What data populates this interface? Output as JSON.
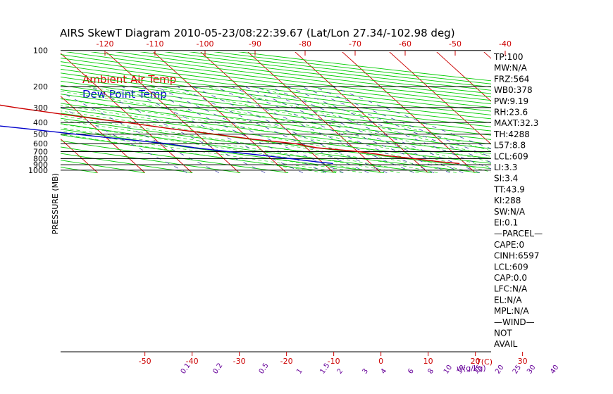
{
  "chart_data": {
    "type": "line",
    "title": "AIRS SkewT Diagram 2010-05-23/08:22:39.67 (Lat/Lon 27.34/-102.98 deg)",
    "ylabel": "PRESSURE (MB)",
    "x_unit_label": "T(C)",
    "mixing_unit_label": "w(g/kg)",
    "pressure_ticks": [
      100,
      200,
      300,
      400,
      500,
      600,
      700,
      800,
      900,
      1000
    ],
    "pressure_range": [
      100,
      1050
    ],
    "bottom_temp_ticks": [
      -50,
      -40,
      -30,
      -20,
      -10,
      0,
      10,
      20,
      30
    ],
    "top_temp_ticks": [
      -120,
      -110,
      -100,
      -90,
      -80,
      -70,
      -60,
      -50,
      -40
    ],
    "mixing_ratio_ticks": [
      "0.1",
      "0.2",
      "0.5",
      "1",
      "1.5",
      "2",
      "3",
      "4",
      "6",
      "8",
      "10",
      "12",
      "15",
      "20",
      "25",
      "30",
      "40"
    ],
    "legend": [
      {
        "name": "Ambient Air Temp",
        "color": "#e00000"
      },
      {
        "name": "Dew Point Temp",
        "color": "#0000cc"
      }
    ],
    "series": [
      {
        "name": "Ambient Air Temp",
        "color": "#cc0000",
        "points": [
          [
            100,
            -75.5
          ],
          [
            120,
            -78.9
          ],
          [
            150,
            -82.8
          ],
          [
            180,
            -82.7
          ],
          [
            200,
            -80.1
          ],
          [
            240,
            -74.1
          ],
          [
            270,
            -68.2
          ],
          [
            300,
            -62.2
          ],
          [
            340,
            -54.0
          ],
          [
            380,
            -46.3
          ],
          [
            400,
            -42.0
          ],
          [
            450,
            -34.3
          ],
          [
            500,
            -26.3
          ],
          [
            550,
            -19.5
          ],
          [
            600,
            -11.5
          ],
          [
            650,
            -7.8
          ],
          [
            700,
            0.3
          ],
          [
            760,
            5.6
          ],
          [
            800,
            10.3
          ],
          [
            850,
            15.0
          ],
          [
            880,
            18.8
          ]
        ]
      },
      {
        "name": "Dew Point Temp",
        "color": "#0000cc",
        "points": [
          [
            100,
            -87.6
          ],
          [
            120,
            -91.6
          ],
          [
            150,
            -96.7
          ],
          [
            180,
            -98.4
          ],
          [
            200,
            -96.0
          ],
          [
            230,
            -90.5
          ],
          [
            260,
            -91.1
          ],
          [
            300,
            -86.5
          ],
          [
            350,
            -80.8
          ],
          [
            400,
            -76.0
          ],
          [
            450,
            -64.9
          ],
          [
            500,
            -55.7
          ],
          [
            550,
            -46.9
          ],
          [
            600,
            -38.7
          ],
          [
            650,
            -33.7
          ],
          [
            700,
            -27.4
          ],
          [
            760,
            -20.2
          ],
          [
            800,
            -15.9
          ],
          [
            850,
            -11.1
          ],
          [
            880,
            -8.0
          ]
        ]
      }
    ],
    "grid": true
  },
  "stats": [
    "TP:100",
    "MW:N/A",
    "FRZ:564",
    "WB0:378",
    "PW:9.19",
    "RH:23.6",
    "MAXT:32.3",
    "TH:4288",
    "L57:8.8",
    "LCL:609",
    "LI:3.3",
    "SI:3.4",
    "TT:43.9",
    "KI:288",
    "SW:N/A",
    "EI:0.1",
    "—PARCEL—",
    "CAPE:0",
    "CINH:6597",
    "LCL:609",
    "CAP:0.0",
    "LFC:N/A",
    "EL:N/A",
    "MPL:N/A",
    "—WIND—",
    "NOT",
    "AVAIL"
  ],
  "colors": {
    "isotherm": "#cc0000",
    "dry_adiabat": "#00cc00",
    "moist_adiabat": "#33dd33",
    "mixing_ratio": "#4444aa",
    "temp": "#cc0000",
    "dew": "#0000cc",
    "tick_red": "#cc0000",
    "tick_purple": "#660099"
  }
}
